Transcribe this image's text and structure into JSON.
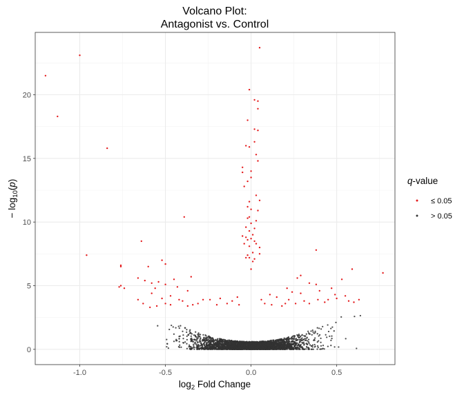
{
  "chart_data": {
    "type": "scatter",
    "title_lines": [
      "Volcano Plot:",
      "Antagonist vs. Control"
    ],
    "xlabel": {
      "prefix": "log",
      "sub": "2",
      "suffix": " Fold Change"
    },
    "ylabel": {
      "prefix": "− log",
      "sub": "10",
      "suffix": "(p)"
    },
    "xlim": [
      -1.26,
      0.84
    ],
    "ylim": [
      -1.2,
      24.9
    ],
    "xticks": [
      {
        "value": -1.0,
        "label": "-1.0"
      },
      {
        "value": -0.5,
        "label": "-0.5"
      },
      {
        "value": 0.0,
        "label": "0.0"
      },
      {
        "value": 0.5,
        "label": "0.5"
      }
    ],
    "yticks": [
      {
        "value": 0,
        "label": "0"
      },
      {
        "value": 5,
        "label": "5"
      },
      {
        "value": 10,
        "label": "10"
      },
      {
        "value": 15,
        "label": "15"
      },
      {
        "value": 20,
        "label": "20"
      }
    ],
    "grid": true,
    "legend": {
      "title_italic": "q",
      "title_rest": "-value",
      "placement": "right",
      "entries": [
        {
          "label": "≤ 0.05",
          "color": "#e41a1c"
        },
        {
          "label": "> 0.05",
          "color": "#333333"
        }
      ]
    },
    "series": [
      {
        "name": "≤ 0.05",
        "color": "#e41a1c",
        "points": [
          [
            0.05,
            23.7
          ],
          [
            -1.0,
            23.1
          ],
          [
            -1.2,
            21.5
          ],
          [
            -1.13,
            18.3
          ],
          [
            -0.84,
            15.8
          ],
          [
            -0.01,
            20.4
          ],
          [
            0.02,
            19.6
          ],
          [
            0.04,
            19.5
          ],
          [
            0.04,
            18.9
          ],
          [
            -0.02,
            18.0
          ],
          [
            0.02,
            17.3
          ],
          [
            0.04,
            17.2
          ],
          [
            0.02,
            16.3
          ],
          [
            -0.03,
            16.0
          ],
          [
            -0.01,
            15.9
          ],
          [
            0.03,
            15.3
          ],
          [
            0.04,
            14.8
          ],
          [
            -0.05,
            14.3
          ],
          [
            0.0,
            14.0
          ],
          [
            -0.05,
            13.9
          ],
          [
            0.0,
            13.5
          ],
          [
            -0.02,
            13.2
          ],
          [
            -0.04,
            12.8
          ],
          [
            0.03,
            12.1
          ],
          [
            -0.01,
            11.6
          ],
          [
            0.05,
            11.7
          ],
          [
            -0.02,
            11.2
          ],
          [
            0.0,
            11.0
          ],
          [
            0.04,
            10.9
          ],
          [
            -0.01,
            10.4
          ],
          [
            0.03,
            10.1
          ],
          [
            -0.02,
            10.3
          ],
          [
            0.0,
            9.9
          ],
          [
            -0.03,
            9.6
          ],
          [
            0.02,
            9.5
          ],
          [
            -0.01,
            9.3
          ],
          [
            0.01,
            9.0
          ],
          [
            -0.05,
            8.9
          ],
          [
            -0.03,
            8.8
          ],
          [
            0.0,
            8.7
          ],
          [
            -0.02,
            8.6
          ],
          [
            0.02,
            8.5
          ],
          [
            -0.04,
            8.3
          ],
          [
            0.03,
            8.3
          ],
          [
            -0.01,
            8.1
          ],
          [
            0.05,
            8.0
          ],
          [
            0.01,
            7.6
          ],
          [
            -0.02,
            7.4
          ],
          [
            0.05,
            7.5
          ],
          [
            -0.01,
            7.2
          ],
          [
            0.02,
            7.1
          ],
          [
            -0.03,
            7.2
          ],
          [
            0.01,
            6.9
          ],
          [
            -0.39,
            10.4
          ],
          [
            -0.64,
            8.5
          ],
          [
            -0.96,
            7.4
          ],
          [
            -0.76,
            6.6
          ],
          [
            -0.76,
            6.5
          ],
          [
            -0.52,
            7.0
          ],
          [
            -0.5,
            6.7
          ],
          [
            -0.6,
            6.5
          ],
          [
            0.0,
            6.3
          ],
          [
            0.38,
            7.8
          ],
          [
            0.59,
            6.3
          ],
          [
            0.77,
            6.0
          ],
          [
            0.27,
            5.6
          ],
          [
            0.29,
            5.8
          ],
          [
            0.53,
            5.5
          ],
          [
            -0.66,
            5.6
          ],
          [
            -0.62,
            5.4
          ],
          [
            -0.54,
            5.3
          ],
          [
            -0.5,
            5.1
          ],
          [
            -0.45,
            5.5
          ],
          [
            -0.35,
            5.7
          ],
          [
            -0.58,
            5.2
          ],
          [
            -0.56,
            4.8
          ],
          [
            -0.43,
            4.9
          ],
          [
            -0.37,
            4.6
          ],
          [
            -0.76,
            5.0
          ],
          [
            -0.77,
            4.9
          ],
          [
            -0.74,
            4.8
          ],
          [
            0.34,
            5.2
          ],
          [
            0.38,
            5.1
          ],
          [
            0.47,
            4.8
          ],
          [
            0.4,
            4.6
          ],
          [
            0.21,
            4.8
          ],
          [
            0.24,
            4.5
          ],
          [
            0.29,
            4.4
          ],
          [
            0.49,
            4.3
          ],
          [
            0.55,
            4.2
          ],
          [
            0.5,
            4.0
          ],
          [
            0.45,
            3.9
          ],
          [
            0.57,
            3.8
          ],
          [
            0.6,
            3.7
          ],
          [
            0.63,
            3.9
          ],
          [
            0.43,
            3.7
          ],
          [
            0.39,
            3.9
          ],
          [
            0.31,
            3.8
          ],
          [
            0.34,
            3.6
          ],
          [
            0.26,
            3.6
          ],
          [
            0.22,
            3.9
          ],
          [
            0.15,
            4.1
          ],
          [
            0.11,
            4.3
          ],
          [
            0.06,
            3.9
          ],
          [
            -0.08,
            4.1
          ],
          [
            -0.11,
            3.8
          ],
          [
            -0.18,
            4.0
          ],
          [
            -0.24,
            3.9
          ],
          [
            -0.14,
            3.6
          ],
          [
            -0.28,
            3.9
          ],
          [
            -0.31,
            3.6
          ],
          [
            -0.34,
            3.5
          ],
          [
            -0.37,
            3.4
          ],
          [
            -0.42,
            3.9
          ],
          [
            -0.47,
            3.5
          ],
          [
            -0.5,
            3.6
          ],
          [
            -0.55,
            3.4
          ],
          [
            -0.59,
            3.3
          ],
          [
            -0.63,
            3.6
          ],
          [
            -0.52,
            4.0
          ],
          [
            -0.47,
            4.2
          ],
          [
            -0.58,
            4.4
          ],
          [
            -0.66,
            3.9
          ],
          [
            -0.2,
            3.5
          ],
          [
            -0.07,
            3.5
          ],
          [
            0.08,
            3.6
          ],
          [
            0.12,
            3.5
          ],
          [
            0.18,
            3.4
          ],
          [
            0.2,
            3.6
          ],
          [
            -0.4,
            3.8
          ]
        ]
      }
    ]
  }
}
